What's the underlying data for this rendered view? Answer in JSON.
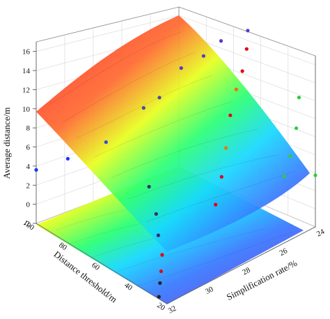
{
  "chart_data": {
    "type": "surface3d",
    "zlabel": "Average distance/m",
    "xlabel": "Distance threshold/m",
    "ylabel": "Simplification rate/%",
    "z_ticks": [
      "-2",
      "0",
      "2",
      "4",
      "6",
      "8",
      "10",
      "12",
      "14",
      "16"
    ],
    "x_ticks": [
      "20",
      "40",
      "60",
      "80",
      "100"
    ],
    "y_ticks": [
      "24",
      "26",
      "28",
      "30",
      "32"
    ],
    "zlim": [
      -2,
      17
    ],
    "grid": true,
    "colormap": [
      "#7a2be2",
      "#3a7cff",
      "#17d8ff",
      "#2cff74",
      "#e8ff1f",
      "#ff9a1a",
      "#ff2330"
    ],
    "surface_description_value": "",
    "points": [
      {
        "x": 100,
        "y": 32,
        "z": 3.6,
        "color": "#1a35ff"
      },
      {
        "x": 92,
        "y": 31,
        "z": 4.6,
        "color": "#1a35ff"
      },
      {
        "x": 80,
        "y": 30,
        "z": 6.6,
        "color": "#2f4fd6"
      },
      {
        "x": 74,
        "y": 28.5,
        "z": 9.3,
        "color": "#4a4aa0"
      },
      {
        "x": 70,
        "y": 28,
        "z": 10.3,
        "color": "#4a4aa0"
      },
      {
        "x": 68,
        "y": 27,
        "z": 12.6,
        "color": "#5a3ac8"
      },
      {
        "x": 60,
        "y": 26.5,
        "z": 14.2,
        "color": "#5a3ac8"
      },
      {
        "x": 55,
        "y": 26,
        "z": 15.8,
        "color": "#5a3ac8"
      },
      {
        "x": 50,
        "y": 25,
        "z": 16.4,
        "color": "#5a3ac8"
      },
      {
        "x": 45,
        "y": 25.5,
        "z": 15.5,
        "color": "#e60012"
      },
      {
        "x": 42,
        "y": 26,
        "z": 14.0,
        "color": "#e60012"
      },
      {
        "x": 40,
        "y": 26.5,
        "z": 12.8,
        "color": "#ff6a00"
      },
      {
        "x": 38,
        "y": 27,
        "z": 10.8,
        "color": "#e60012"
      },
      {
        "x": 35,
        "y": 27.5,
        "z": 8.2,
        "color": "#e37b00"
      },
      {
        "x": 32,
        "y": 28,
        "z": 6.0,
        "color": "#e60012"
      },
      {
        "x": 30,
        "y": 28.5,
        "z": 3.8,
        "color": "#e60012"
      },
      {
        "x": 30,
        "y": 24,
        "z": 10.5,
        "color": "#2ecc40"
      },
      {
        "x": 26,
        "y": 24.5,
        "z": 8.2,
        "color": "#2ecc40"
      },
      {
        "x": 24,
        "y": 25,
        "z": 6.0,
        "color": "#2ecc40"
      },
      {
        "x": 22,
        "y": 25.5,
        "z": 4.6,
        "color": "#2ecc40"
      },
      {
        "x": 20,
        "y": 24,
        "z": 3.4,
        "color": "#2ecc40"
      },
      {
        "x": 65,
        "y": 29,
        "z": 2.5,
        "color": "#333366"
      },
      {
        "x": 55,
        "y": 29.5,
        "z": 1.2,
        "color": "#333366"
      },
      {
        "x": 48,
        "y": 30,
        "z": 0.2,
        "color": "#333366"
      },
      {
        "x": 40,
        "y": 30.5,
        "z": -0.5,
        "color": "#e60012"
      },
      {
        "x": 35,
        "y": 31,
        "z": -1.2,
        "color": "#e60012"
      },
      {
        "x": 30,
        "y": 31.5,
        "z": -1.4,
        "color": "#222222"
      },
      {
        "x": 25,
        "y": 32,
        "z": -1.8,
        "color": "#222222"
      }
    ]
  }
}
